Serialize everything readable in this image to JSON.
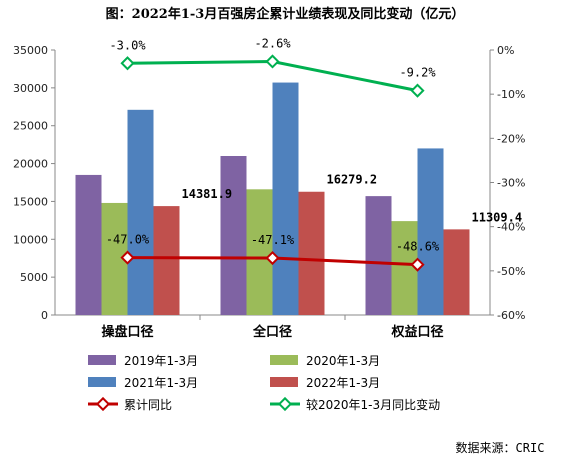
{
  "chart_data": {
    "type": "bar",
    "title": "图：2022年1-3月百强房企累计业绩表现及同比变动（亿元）",
    "categories": [
      "操盘口径",
      "全口径",
      "权益口径"
    ],
    "ylim": [
      0,
      35000
    ],
    "y_ticks": [
      0,
      5000,
      10000,
      15000,
      20000,
      25000,
      30000,
      35000
    ],
    "y2lim": [
      -60,
      0
    ],
    "y2_ticks": [
      0,
      -10,
      -20,
      -30,
      -40,
      -50,
      -60
    ],
    "y2_tick_labels": [
      "0%",
      "-10%",
      "-20%",
      "-30%",
      "-40%",
      "-50%",
      "-60%"
    ],
    "series": [
      {
        "name": "2019年1-3月",
        "kind": "bar",
        "color": "#7f63a3",
        "values": [
          18500,
          21000,
          15700
        ]
      },
      {
        "name": "2020年1-3月",
        "kind": "bar",
        "color": "#9bbb59",
        "values": [
          14800,
          16600,
          12400
        ]
      },
      {
        "name": "2021年1-3月",
        "kind": "bar",
        "color": "#4f81bd",
        "values": [
          27100,
          30700,
          22000
        ]
      },
      {
        "name": "2022年1-3月",
        "kind": "bar",
        "color": "#c0504d",
        "values": [
          14381.9,
          16279.2,
          11309.4
        ],
        "labels": [
          "14381.9",
          "16279.2",
          "11309.4"
        ]
      },
      {
        "name": "累计同比",
        "kind": "line",
        "axis": "right",
        "color": "#c00000",
        "values": [
          -47.0,
          -47.1,
          -48.6
        ],
        "labels": [
          "-47.0%",
          "-47.1%",
          "-48.6%"
        ]
      },
      {
        "name": "较2020年1-3月同比变动",
        "kind": "line",
        "axis": "right",
        "color": "#00b050",
        "values": [
          -3.0,
          -2.6,
          -9.2
        ],
        "labels": [
          "-3.0%",
          "-2.6%",
          "-9.2%"
        ]
      }
    ],
    "legend_position": "bottom",
    "grid": false
  },
  "source_note": "数据来源：CRIC"
}
